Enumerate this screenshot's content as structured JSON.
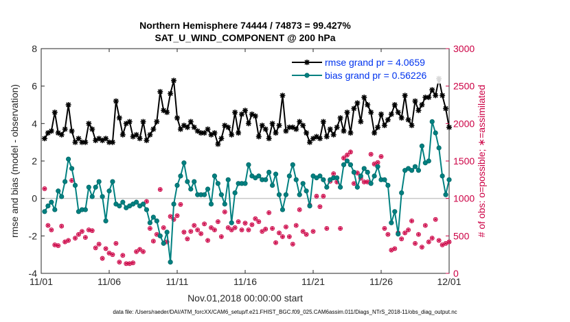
{
  "chart_data": {
    "type": "line",
    "title": "Northern Hemisphere 74444 / 74873 = 99.427%",
    "subtitle": "SAT_U_WIND_COMPONENT @ 200 hPa",
    "xlabel": "Nov.01,2018 00:00:00 start",
    "ylabel_left": "rmse and bias (model - observation)",
    "ylabel_right": "# of obs: o=possible; ∗=assimilated",
    "footnote": "data file: /Users/raeder/DAI/ATM_forcXX/CAM6_setup/f.e21.FHIST_BGC.f09_025.CAM6assim.011/Diags_NTrS_2018-11/obs_diag_output.nc",
    "xlim": [
      0,
      30
    ],
    "ylim_left": [
      -4,
      8
    ],
    "ylim_right": [
      0,
      3000
    ],
    "xticks": [
      0,
      5,
      10,
      15,
      20,
      25,
      30
    ],
    "xtick_labels": [
      "11/01",
      "11/06",
      "11/11",
      "11/16",
      "11/21",
      "11/26",
      "12/01"
    ],
    "yticks_left": [
      -4,
      -2,
      0,
      2,
      4,
      6,
      8
    ],
    "yticks_right": [
      0,
      500,
      1000,
      1500,
      2000,
      2500,
      3000
    ],
    "grid": false,
    "legend_position": "top-right",
    "colors": {
      "rmse": "#000000",
      "bias": "#008080",
      "obs": "#cc0044",
      "legend_text": "#0033ee",
      "zero_line": "#c8c8c8"
    },
    "series": [
      {
        "name": "rmse grand pr = 4.0659",
        "axis": "left",
        "marker": "asterisk",
        "x": [
          0.25,
          0.5,
          0.75,
          1.0,
          1.25,
          1.5,
          1.75,
          2.0,
          2.25,
          2.5,
          2.75,
          3.0,
          3.25,
          3.5,
          3.75,
          4.0,
          4.25,
          4.5,
          4.75,
          5.0,
          5.25,
          5.5,
          5.75,
          6.0,
          6.25,
          6.5,
          6.75,
          7.0,
          7.25,
          7.5,
          7.75,
          8.0,
          8.25,
          8.5,
          8.75,
          9.0,
          9.25,
          9.5,
          9.75,
          10.0,
          10.25,
          10.5,
          10.75,
          11.0,
          11.25,
          11.5,
          11.75,
          12.0,
          12.25,
          12.5,
          12.75,
          13.0,
          13.25,
          13.5,
          13.75,
          14.0,
          14.25,
          14.5,
          14.75,
          15.0,
          15.25,
          15.5,
          15.75,
          16.0,
          16.25,
          16.5,
          16.75,
          17.0,
          17.25,
          17.5,
          17.75,
          18.0,
          18.25,
          18.5,
          18.75,
          19.0,
          19.25,
          19.5,
          19.75,
          20.0,
          20.25,
          20.5,
          20.75,
          21.0,
          21.25,
          21.5,
          21.75,
          22.0,
          22.25,
          22.5,
          22.75,
          23.0,
          23.25,
          23.5,
          23.75,
          24.0,
          24.25,
          24.5,
          24.75,
          25.0,
          25.25,
          25.5,
          25.75,
          26.0,
          26.25,
          26.5,
          26.75,
          27.0,
          27.25,
          27.5,
          27.75,
          28.0,
          28.25,
          28.5,
          28.75,
          29.0,
          29.25,
          29.5,
          29.75,
          30.0
        ],
        "values": [
          3.2,
          3.5,
          3.6,
          4.6,
          3.5,
          3.4,
          3.7,
          5.0,
          3.6,
          3.0,
          3.2,
          3.0,
          3.0,
          4.0,
          3.7,
          3.1,
          3.2,
          3.1,
          3.2,
          3.0,
          3.0,
          5.2,
          4.3,
          3.4,
          4.0,
          4.1,
          3.3,
          3.4,
          3.2,
          4.1,
          3.1,
          3.4,
          3.7,
          4.1,
          5.7,
          4.7,
          4.6,
          5.6,
          6.3,
          4.3,
          3.7,
          3.9,
          3.8,
          4.1,
          3.8,
          3.6,
          3.5,
          3.5,
          3.7,
          3.4,
          3.5,
          2.9,
          3.2,
          3.9,
          3.8,
          3.4,
          4.6,
          3.5,
          4.5,
          4.7,
          4.0,
          4.5,
          4.4,
          3.3,
          3.9,
          3.7,
          3.2,
          4.0,
          3.5,
          3.9,
          5.5,
          3.6,
          3.8,
          3.8,
          3.7,
          4.1,
          3.9,
          3.5,
          3.0,
          3.2,
          3.3,
          3.2,
          4.1,
          3.3,
          3.7,
          3.4,
          3.8,
          4.3,
          3.6,
          4.6,
          3.5,
          4.8,
          5.1,
          4.1,
          5.4,
          5.0,
          4.6,
          3.5,
          3.8,
          4.5,
          3.9,
          4.2,
          4.5,
          5.0,
          4.6,
          4.3,
          5.5,
          4.2,
          3.9,
          5.2,
          4.7,
          5.0,
          5.4,
          5.4,
          5.8,
          5.5,
          6.4,
          5.5,
          4.8,
          3.8
        ]
      },
      {
        "name": "bias grand pr = 0.56226",
        "axis": "left",
        "marker": "circle",
        "x": [
          0.25,
          0.5,
          0.75,
          1.0,
          1.25,
          1.5,
          1.75,
          2.0,
          2.25,
          2.5,
          2.75,
          3.0,
          3.25,
          3.5,
          3.75,
          4.0,
          4.25,
          4.5,
          4.75,
          5.0,
          5.25,
          5.5,
          5.75,
          6.0,
          6.25,
          6.5,
          6.75,
          7.0,
          7.25,
          7.5,
          7.75,
          8.0,
          8.25,
          8.5,
          8.75,
          9.0,
          9.25,
          9.5,
          9.75,
          10.0,
          10.25,
          10.5,
          10.75,
          11.0,
          11.25,
          11.5,
          11.75,
          12.0,
          12.25,
          12.5,
          12.75,
          13.0,
          13.25,
          13.5,
          13.75,
          14.0,
          14.25,
          14.5,
          14.75,
          15.0,
          15.25,
          15.5,
          15.75,
          16.0,
          16.25,
          16.5,
          16.75,
          17.0,
          17.25,
          17.5,
          17.75,
          18.0,
          18.25,
          18.5,
          18.75,
          19.0,
          19.25,
          19.5,
          19.75,
          20.0,
          20.25,
          20.5,
          20.75,
          21.0,
          21.25,
          21.5,
          21.75,
          22.0,
          22.25,
          22.5,
          22.75,
          23.0,
          23.25,
          23.5,
          23.75,
          24.0,
          24.25,
          24.5,
          24.75,
          25.0,
          25.25,
          25.5,
          25.75,
          26.0,
          26.25,
          26.5,
          26.75,
          27.0,
          27.25,
          27.5,
          27.75,
          28.0,
          28.25,
          28.5,
          28.75,
          29.0,
          29.25,
          29.5,
          29.75,
          30.0
        ],
        "values": [
          -0.7,
          -0.4,
          -0.2,
          -0.6,
          0.4,
          0.1,
          0.9,
          2.1,
          1.6,
          0.7,
          -0.7,
          -0.6,
          -0.6,
          0.6,
          0.1,
          0.6,
          0.9,
          0.1,
          -1.2,
          0.4,
          0.9,
          -0.3,
          -0.4,
          -0.2,
          -0.5,
          -0.4,
          -0.3,
          -0.2,
          -0.4,
          -0.3,
          -0.6,
          -1.3,
          -1.0,
          -1.2,
          -2.0,
          -2.4,
          -1.8,
          -3.4,
          -0.3,
          0.7,
          1.2,
          1.9,
          0.9,
          0.5,
          0.9,
          0.2,
          0.2,
          0.2,
          0.5,
          -0.3,
          1.2,
          0.8,
          0.2,
          -0.3,
          1.0,
          -1.3,
          0.3,
          0.8,
          0.8,
          0.8,
          1.8,
          1.2,
          1.1,
          1.2,
          1.0,
          1.0,
          1.4,
          0.7,
          1.3,
          0.2,
          -0.6,
          0.2,
          1.2,
          1.8,
          1.0,
          0.2,
          0.8,
          0.4,
          -0.4,
          1.2,
          1.1,
          1.2,
          1.0,
          0.6,
          1.0,
          1.1,
          1.1,
          0.6,
          1.8,
          2.0,
          1.8,
          1.4,
          0.6,
          1.2,
          1.6,
          1.4,
          0.8,
          1.2,
          1.7,
          1.0,
          1.0,
          0.7,
          -1.3,
          -0.7,
          -1.9,
          0.3,
          1.5,
          1.6,
          1.5,
          1.7,
          1.5,
          2.8,
          1.9,
          2.0,
          4.1,
          3.5,
          2.7,
          1.2,
          0.2,
          1.0
        ]
      },
      {
        "name": "# of obs possible",
        "axis": "right",
        "marker": "open-circle",
        "x": [
          0.25,
          0.5,
          0.75,
          1.0,
          1.25,
          1.5,
          1.75,
          2.0,
          2.25,
          2.5,
          2.75,
          3.0,
          3.25,
          3.5,
          3.75,
          4.0,
          4.25,
          4.5,
          4.75,
          5.0,
          5.25,
          5.5,
          5.75,
          6.0,
          6.25,
          6.5,
          6.75,
          7.0,
          7.25,
          7.5,
          7.75,
          8.0,
          8.25,
          8.5,
          8.75,
          9.0,
          9.25,
          9.5,
          9.75,
          10.0,
          10.25,
          10.5,
          10.75,
          11.0,
          11.25,
          11.5,
          11.75,
          12.0,
          12.25,
          12.5,
          12.75,
          13.0,
          13.25,
          13.5,
          13.75,
          14.0,
          14.25,
          14.5,
          14.75,
          15.0,
          15.25,
          15.5,
          15.75,
          16.0,
          16.25,
          16.5,
          16.75,
          17.0,
          17.25,
          17.5,
          17.75,
          18.0,
          18.25,
          18.5,
          18.75,
          19.0,
          19.25,
          19.5,
          19.75,
          20.0,
          20.25,
          20.5,
          20.75,
          21.0,
          21.25,
          21.5,
          21.75,
          22.0,
          22.25,
          22.5,
          22.75,
          23.0,
          23.25,
          23.5,
          23.75,
          24.0,
          24.25,
          24.5,
          24.75,
          25.0,
          25.25,
          25.5,
          25.75,
          26.0,
          26.25,
          26.5,
          26.75,
          27.0,
          27.25,
          27.5,
          27.75,
          28.0,
          28.25,
          28.5,
          28.75,
          29.0,
          29.25,
          29.5,
          29.75,
          30.0
        ],
        "values": [
          1130,
          640,
          580,
          380,
          370,
          630,
          420,
          440,
          1240,
          470,
          520,
          560,
          480,
          580,
          570,
          340,
          390,
          200,
          330,
          270,
          250,
          400,
          150,
          240,
          130,
          130,
          140,
          290,
          320,
          290,
          960,
          600,
          430,
          520,
          1120,
          610,
          420,
          760,
          720,
          770,
          920,
          550,
          460,
          560,
          640,
          580,
          530,
          660,
          440,
          610,
          580,
          690,
          490,
          820,
          610,
          580,
          610,
          690,
          580,
          670,
          580,
          650,
          730,
          690,
          560,
          590,
          810,
          600,
          410,
          540,
          490,
          620,
          490,
          390,
          640,
          850,
          560,
          520,
          910,
          560,
          1030,
          890,
          1030,
          600,
          1230,
          1330,
          1220,
          600,
          1540,
          1580,
          1620,
          1200,
          1340,
          1270,
          1220,
          1220,
          1590,
          1460,
          1480,
          1560,
          600,
          520,
          310,
          330,
          540,
          460,
          540,
          580,
          700,
          400,
          520,
          350,
          640,
          420,
          470,
          720,
          440,
          380,
          400,
          420
        ]
      },
      {
        "name": "# of obs assimilated",
        "axis": "right",
        "marker": "asterisk",
        "x": [
          0.25,
          0.5,
          0.75,
          1.0,
          1.25,
          1.5,
          1.75,
          2.0,
          2.25,
          2.5,
          2.75,
          3.0,
          3.25,
          3.5,
          3.75,
          4.0,
          4.25,
          4.5,
          4.75,
          5.0,
          5.25,
          5.5,
          5.75,
          6.0,
          6.25,
          6.5,
          6.75,
          7.0,
          7.25,
          7.5,
          7.75,
          8.0,
          8.25,
          8.5,
          8.75,
          9.0,
          9.25,
          9.5,
          9.75,
          10.0,
          10.25,
          10.5,
          10.75,
          11.0,
          11.25,
          11.5,
          11.75,
          12.0,
          12.25,
          12.5,
          12.75,
          13.0,
          13.25,
          13.5,
          13.75,
          14.0,
          14.25,
          14.5,
          14.75,
          15.0,
          15.25,
          15.5,
          15.75,
          16.0,
          16.25,
          16.5,
          16.75,
          17.0,
          17.25,
          17.5,
          17.75,
          18.0,
          18.25,
          18.5,
          18.75,
          19.0,
          19.25,
          19.5,
          19.75,
          20.0,
          20.25,
          20.5,
          20.75,
          21.0,
          21.25,
          21.5,
          21.75,
          22.0,
          22.25,
          22.5,
          22.75,
          23.0,
          23.25,
          23.5,
          23.75,
          24.0,
          24.25,
          24.5,
          24.75,
          25.0,
          25.25,
          25.5,
          25.75,
          26.0,
          26.25,
          26.5,
          26.75,
          27.0,
          27.25,
          27.5,
          27.75,
          28.0,
          28.25,
          28.5,
          28.75,
          29.0,
          29.25,
          29.5,
          29.75,
          30.0
        ],
        "values": [
          1130,
          640,
          580,
          380,
          370,
          630,
          420,
          440,
          1240,
          470,
          520,
          560,
          480,
          580,
          570,
          340,
          390,
          200,
          330,
          270,
          250,
          400,
          150,
          240,
          130,
          130,
          140,
          290,
          320,
          290,
          960,
          600,
          430,
          520,
          1120,
          610,
          420,
          760,
          720,
          770,
          920,
          550,
          460,
          560,
          640,
          580,
          530,
          660,
          440,
          610,
          580,
          690,
          490,
          820,
          610,
          580,
          610,
          690,
          580,
          670,
          580,
          650,
          730,
          690,
          560,
          590,
          810,
          600,
          410,
          540,
          490,
          620,
          490,
          390,
          640,
          850,
          560,
          520,
          910,
          560,
          1030,
          890,
          1030,
          600,
          1230,
          1330,
          1220,
          600,
          1540,
          1580,
          1620,
          1200,
          1340,
          1270,
          1220,
          1220,
          1590,
          1460,
          1480,
          1560,
          600,
          520,
          310,
          330,
          540,
          460,
          540,
          580,
          700,
          400,
          520,
          350,
          640,
          420,
          470,
          720,
          440,
          380,
          400,
          420
        ]
      }
    ]
  }
}
